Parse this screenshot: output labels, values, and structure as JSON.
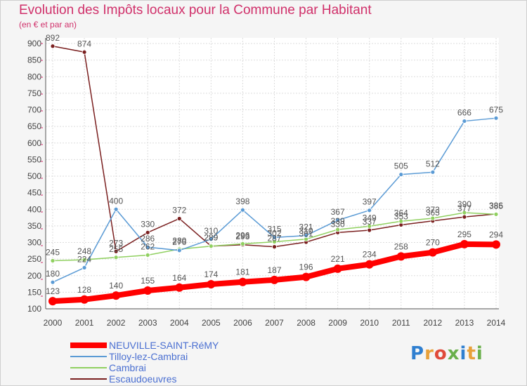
{
  "header": {
    "title": "Evolution des Impôts locaux pour la Commune par Habitant",
    "subtitle": "(en € et par an)"
  },
  "brand": {
    "name": "Proxiti",
    "colors": [
      "#2f7fd0",
      "#e8a13a",
      "#e04a3a",
      "#6ab04c",
      "#2f7fd0",
      "#e8a13a",
      "#6ab04c"
    ]
  },
  "chart_data": {
    "type": "line",
    "x": [
      "2000",
      "2001",
      "2002",
      "2003",
      "2004",
      "2005",
      "2006",
      "2007",
      "2008",
      "2009",
      "2010",
      "2011",
      "2012",
      "2013",
      "2014"
    ],
    "ylim": [
      100,
      900
    ],
    "yticks": [
      100,
      150,
      200,
      250,
      300,
      350,
      400,
      450,
      500,
      550,
      600,
      650,
      700,
      750,
      800,
      850,
      900
    ],
    "grid": true,
    "legend_position": "bottom-left",
    "series": [
      {
        "name": "NEUVILLE-SAINT-RéMY",
        "color": "#ff0000",
        "values": [
          123,
          128,
          140,
          155,
          164,
          174,
          181,
          187,
          196,
          221,
          234,
          258,
          270,
          295,
          294
        ]
      },
      {
        "name": "Tilloy-lez-Cambrai",
        "color": "#5b9bd5",
        "values": [
          180,
          224,
          400,
          286,
          276,
          310,
          398,
          315,
          321,
          367,
          397,
          505,
          512,
          666,
          675
        ]
      },
      {
        "name": "Cambrai",
        "color": "#90d060",
        "values": [
          245,
          248,
          255,
          262,
          280,
          289,
          296,
          302,
          310,
          339,
          349,
          364,
          373,
          390,
          385
        ]
      },
      {
        "name": "Escaudoeuvres",
        "color": "#7a1f1f",
        "values": [
          892,
          874,
          273,
          330,
          372,
          289,
          293,
          287,
          301,
          330,
          337,
          353,
          365,
          377,
          386
        ]
      }
    ]
  }
}
